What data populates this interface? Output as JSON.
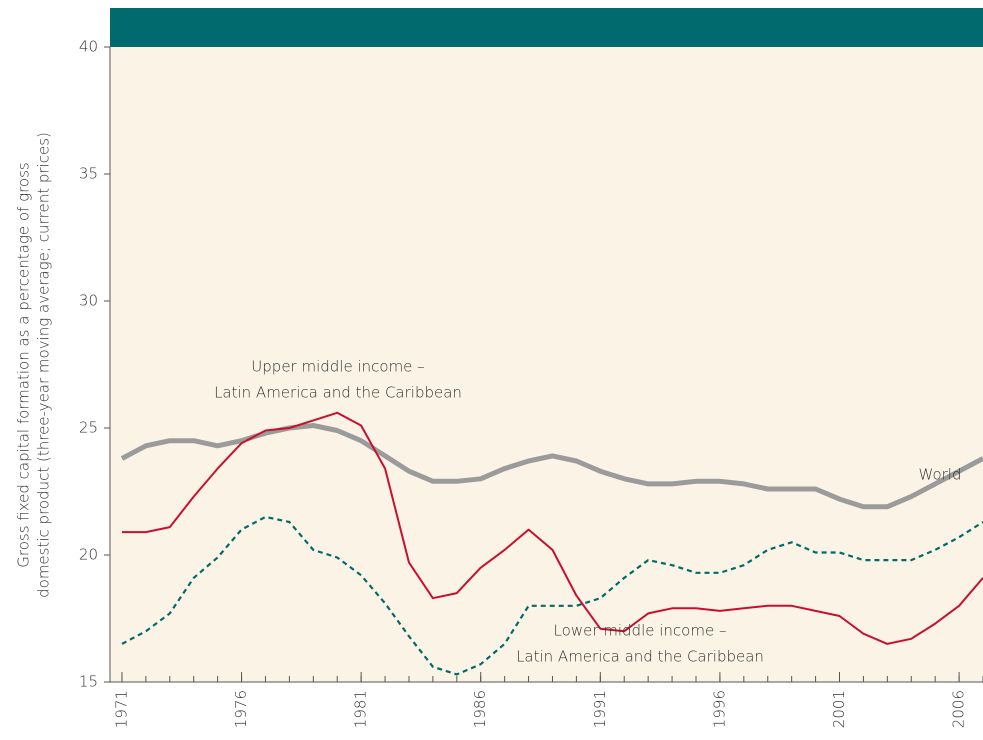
{
  "chart_data": {
    "type": "line",
    "y_label": [
      "Gross fixed capital formation as a percentage of gross",
      "domestic product (three-year moving average; current prices)"
    ],
    "x": [
      1971,
      1972,
      1973,
      1974,
      1975,
      1976,
      1977,
      1978,
      1979,
      1980,
      1981,
      1982,
      1983,
      1984,
      1985,
      1986,
      1987,
      1988,
      1989,
      1990,
      1991,
      1992,
      1993,
      1994,
      1995,
      1996,
      1997,
      1998,
      1999,
      2000,
      2001,
      2002,
      2003,
      2004,
      2005,
      2006,
      2007
    ],
    "xlim": [
      1970.5,
      2007
    ],
    "xticks": [
      1971,
      1976,
      1981,
      1986,
      1991,
      1996,
      2001,
      2006
    ],
    "ylim": [
      15,
      40
    ],
    "yticks": [
      15,
      20,
      25,
      30,
      35,
      40
    ],
    "series": [
      {
        "name": "World",
        "color": "#9b9b9b",
        "style": "solid",
        "values": [
          23.8,
          24.3,
          24.5,
          24.5,
          24.3,
          24.5,
          24.8,
          25.0,
          25.1,
          24.9,
          24.5,
          23.9,
          23.3,
          22.9,
          22.9,
          23.0,
          23.4,
          23.7,
          23.9,
          23.7,
          23.3,
          23.0,
          22.8,
          22.8,
          22.9,
          22.9,
          22.8,
          22.6,
          22.6,
          22.6,
          22.2,
          21.9,
          21.9,
          22.3,
          22.8,
          23.3,
          23.8
        ]
      },
      {
        "name": "Upper middle income – Latin America and the Caribbean",
        "color": "#c8102e",
        "style": "solid",
        "values": [
          20.9,
          20.9,
          21.1,
          22.3,
          23.4,
          24.4,
          24.9,
          25.0,
          25.3,
          25.6,
          25.1,
          23.4,
          19.7,
          18.3,
          18.5,
          19.5,
          20.2,
          21.0,
          20.2,
          18.4,
          17.1,
          17.0,
          17.7,
          17.9,
          17.9,
          17.8,
          17.9,
          18.0,
          18.0,
          17.8,
          17.6,
          16.9,
          16.5,
          16.7,
          17.3,
          18.0,
          19.1
        ]
      },
      {
        "name": "Lower middle income – Latin America and the Caribbean",
        "color": "#006b6b",
        "style": "dashed",
        "values": [
          16.5,
          17.0,
          17.7,
          19.1,
          19.9,
          21.0,
          21.5,
          21.3,
          20.2,
          19.9,
          19.2,
          18.1,
          16.8,
          15.6,
          15.3,
          15.7,
          16.5,
          18.0,
          18.0,
          18.0,
          18.3,
          19.1,
          19.8,
          19.6,
          19.3,
          19.3,
          19.6,
          20.2,
          20.5,
          20.1,
          20.1,
          19.8,
          19.8,
          19.8,
          20.2,
          20.7,
          21.3
        ]
      }
    ],
    "annotations": [
      {
        "lines": [
          "Upper middle income –",
          "Latin America and the Caribbean"
        ]
      },
      {
        "lines": [
          "Lower middle income –",
          "Latin America and the Caribbean"
        ]
      },
      {
        "lines": [
          "World"
        ]
      }
    ]
  }
}
